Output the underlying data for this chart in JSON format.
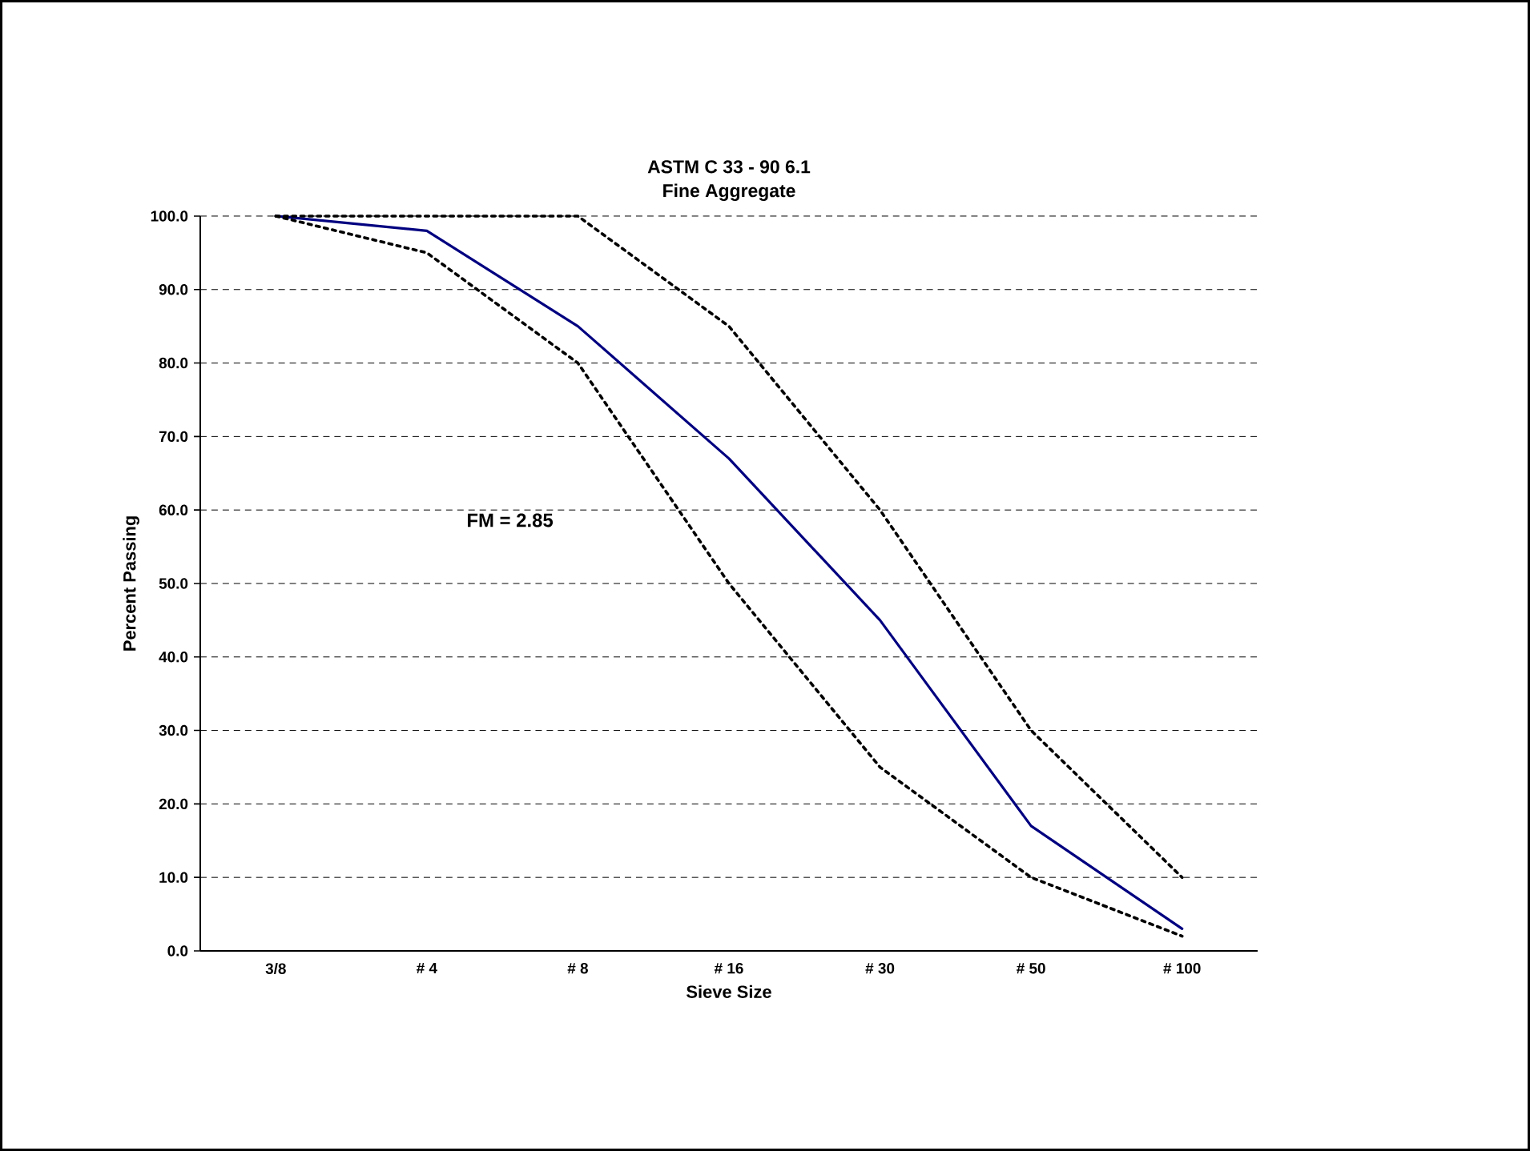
{
  "chart_data": {
    "type": "line",
    "title": "ASTM C 33 - 90  6.1",
    "subtitle": "Fine Aggregate",
    "xlabel": "Sieve Size",
    "ylabel": "Percent Passing",
    "categories": [
      "3/8",
      "# 4",
      "# 8",
      "# 16",
      "# 30",
      "# 50",
      "# 100"
    ],
    "series": [
      {
        "color": "#000080",
        "line_style": "solid",
        "values": [
          100,
          98,
          85,
          67,
          45,
          17,
          3
        ]
      },
      {
        "color": "#000000",
        "line_style": "dotted",
        "values": [
          100,
          95,
          80,
          50,
          25,
          10,
          2
        ]
      },
      {
        "color": "#000000",
        "line_style": "dotted",
        "values": [
          100,
          100,
          100,
          85,
          60,
          30,
          10
        ]
      }
    ],
    "ylim": [
      0,
      100
    ],
    "yticks": [
      {
        "value": 0,
        "label": "0.0"
      },
      {
        "value": 10,
        "label": "10.0"
      },
      {
        "value": 20,
        "label": "20.0"
      },
      {
        "value": 30,
        "label": "30.0"
      },
      {
        "value": 40,
        "label": "40.0"
      },
      {
        "value": 50,
        "label": "50.0"
      },
      {
        "value": 60,
        "label": "60.0"
      },
      {
        "value": 70,
        "label": "70.0"
      },
      {
        "value": 80,
        "label": "80.0"
      },
      {
        "value": 90,
        "label": "90.0"
      },
      {
        "value": 100,
        "label": "100.0"
      }
    ],
    "grid": "y",
    "marker": "none",
    "annotations": [
      "FM = 2.85"
    ]
  }
}
